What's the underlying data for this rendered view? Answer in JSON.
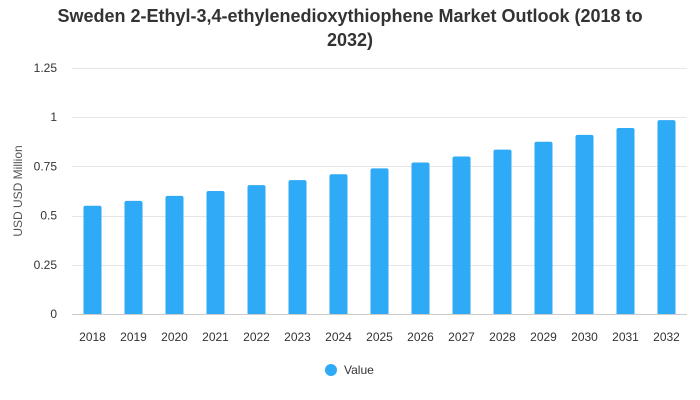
{
  "chart_data": {
    "type": "bar",
    "title_lines": [
      "Sweden 2-Ethyl-3,4-ethylenedioxythiophene Market Outlook (2018 to",
      "2032)"
    ],
    "ylabel": "USD USD Million",
    "xlabel": "",
    "categories": [
      "2018",
      "2019",
      "2020",
      "2021",
      "2022",
      "2023",
      "2024",
      "2025",
      "2026",
      "2027",
      "2028",
      "2029",
      "2030",
      "2031",
      "2032"
    ],
    "series": [
      {
        "name": "Value",
        "color": "#2eaaf6",
        "values": [
          0.55,
          0.575,
          0.6,
          0.625,
          0.655,
          0.68,
          0.71,
          0.74,
          0.77,
          0.8,
          0.835,
          0.875,
          0.91,
          0.945,
          0.985
        ]
      }
    ],
    "ylim": [
      0,
      1.25
    ],
    "yticks": [
      0,
      0.25,
      0.5,
      0.75,
      1,
      1.25
    ],
    "ytick_labels": [
      "0",
      "0.25",
      "0.5",
      "0.75",
      "1",
      "1.25"
    ],
    "grid": true,
    "legend_position": "bottom-center"
  }
}
